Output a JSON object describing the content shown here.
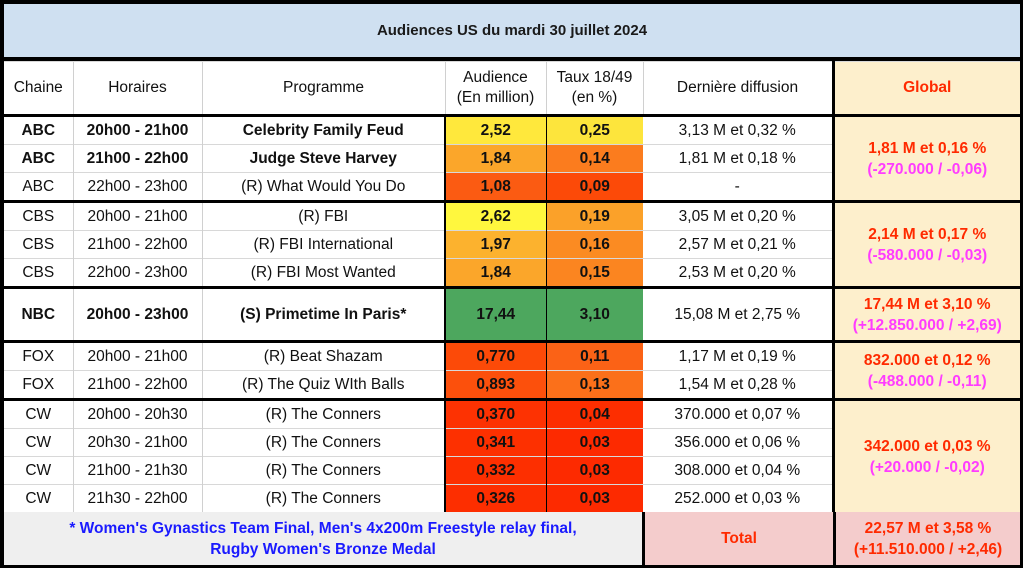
{
  "title": "Audiences US du mardi 30 juillet 2024",
  "headers": {
    "chaine": "Chaine",
    "horaires": "Horaires",
    "programme": "Programme",
    "audience_l1": "Audience",
    "audience_l2": "(En million)",
    "taux_l1": "Taux 18/49",
    "taux_l2": "(en %)",
    "derniere": "Dernière diffusion",
    "global": "Global"
  },
  "rows": [
    {
      "chaine": "ABC",
      "horaires": "20h00 - 21h00",
      "programme": "Celebrity Family Feud",
      "audience": "2,52",
      "taux": "0,25",
      "derniere": "3,13 M et 0,32 %",
      "bold": true,
      "aud_color": "#ffe83c",
      "taux_color": "#fde53c"
    },
    {
      "chaine": "ABC",
      "horaires": "21h00 - 22h00",
      "programme": "Judge Steve Harvey",
      "audience": "1,84",
      "taux": "0,14",
      "derniere": "1,81 M et 0,18 %",
      "bold": true,
      "aud_color": "#fba62a",
      "taux_color": "#fb7c1e"
    },
    {
      "chaine": "ABC",
      "horaires": "22h00 - 23h00",
      "programme": "(R) What Would You Do",
      "audience": "1,08",
      "taux": "0,09",
      "derniere": "-",
      "bold": false,
      "aud_color": "#fb5b12",
      "taux_color": "#fc4a08"
    },
    {
      "chaine": "CBS",
      "horaires": "20h00 - 21h00",
      "programme": "(R) FBI",
      "audience": "2,62",
      "taux": "0,19",
      "derniere": "3,05 M et 0,20 %",
      "bold": false,
      "aud_color": "#fff73e",
      "taux_color": "#fba129"
    },
    {
      "chaine": "CBS",
      "horaires": "21h00 - 22h00",
      "programme": "(R) FBI International",
      "audience": "1,97",
      "taux": "0,16",
      "derniere": "2,57 M et 0,21 %",
      "bold": false,
      "aud_color": "#fcb22e",
      "taux_color": "#fb8b22"
    },
    {
      "chaine": "CBS",
      "horaires": "22h00 - 23h00",
      "programme": "(R) FBI Most Wanted",
      "audience": "1,84",
      "taux": "0,15",
      "derniere": "2,53 M et 0,20 %",
      "bold": false,
      "aud_color": "#fba62a",
      "taux_color": "#fb8520"
    },
    {
      "chaine": "NBC",
      "horaires": "20h00 - 23h00",
      "programme": "(S) Primetime In Paris*",
      "audience": "17,44",
      "taux": "3,10",
      "derniere": "15,08 M et 2,75 %",
      "bold": true,
      "aud_color": "#4da75e",
      "taux_color": "#4da75e"
    },
    {
      "chaine": "FOX",
      "horaires": "20h00 - 21h00",
      "programme": "(R) Beat Shazam",
      "audience": "0,770",
      "taux": "0,11",
      "derniere": "1,17 M et 0,19 %",
      "bold": false,
      "aud_color": "#fc4a08",
      "taux_color": "#fb6216"
    },
    {
      "chaine": "FOX",
      "horaires": "21h00 - 22h00",
      "programme": "(R) The Quiz WIth Balls",
      "audience": "0,893",
      "taux": "0,13",
      "derniere": "1,54 M et 0,28 %",
      "bold": false,
      "aud_color": "#fc500c",
      "taux_color": "#fb701a"
    },
    {
      "chaine": "CW",
      "horaires": "20h00 - 20h30",
      "programme": "(R) The Conners",
      "audience": "0,370",
      "taux": "0,04",
      "derniere": "370.000 et 0,07 %",
      "bold": false,
      "aud_color": "#fd3202",
      "taux_color": "#fd2e00"
    },
    {
      "chaine": "CW",
      "horaires": "20h30 - 21h00",
      "programme": "(R) The Conners",
      "audience": "0,341",
      "taux": "0,03",
      "derniere": "356.000 et 0,06 %",
      "bold": false,
      "aud_color": "#fd3000",
      "taux_color": "#fd2a00"
    },
    {
      "chaine": "CW",
      "horaires": "21h00 - 21h30",
      "programme": "(R) The Conners",
      "audience": "0,332",
      "taux": "0,03",
      "derniere": "308.000 et 0,04 %",
      "bold": false,
      "aud_color": "#fd2f00",
      "taux_color": "#fd2a00"
    },
    {
      "chaine": "CW",
      "horaires": "21h30 - 22h00",
      "programme": "(R) The Conners",
      "audience": "0,326",
      "taux": "0,03",
      "derniere": "252.000 et 0,03 %",
      "bold": false,
      "aud_color": "#fd2e00",
      "taux_color": "#fd2a00"
    }
  ],
  "globals": [
    {
      "line1": "1,81 M et 0,16 %",
      "line2": "(-270.000 / -0,06)"
    },
    {
      "line1": "2,14 M et 0,17 %",
      "line2": "(-580.000 / -0,03)"
    },
    {
      "line1": "17,44 M et 3,10 %",
      "line2": "(+12.850.000 / +2,69)"
    },
    {
      "line1": "832.000 et 0,12 %",
      "line2": "(-488.000 / -0,11)"
    },
    {
      "line1": "342.000 et 0,03 %",
      "line2": "(+20.000 / -0,02)"
    }
  ],
  "footer": {
    "note_l1": "* Women's Gynastics Team Final, Men's 4x200m Freestyle relay final,",
    "note_l2": "Rugby Women's Bronze Medal",
    "total_label": "Total",
    "total_l1": "22,57 M et 3,58 %",
    "total_l2": "(+11.510.000 / +2,46)"
  }
}
